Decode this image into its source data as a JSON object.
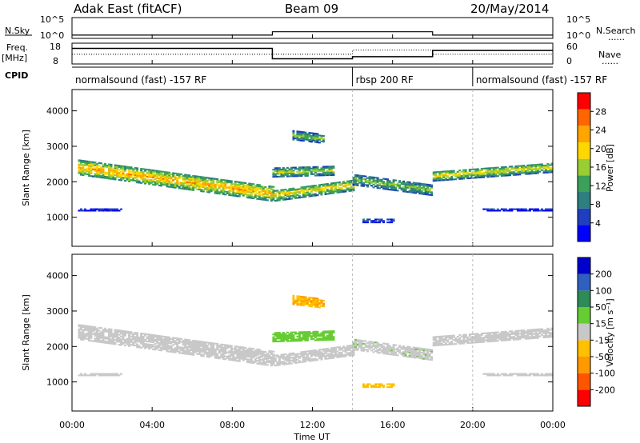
{
  "header": {
    "station": "Adak East (fitACF)",
    "beam": "Beam 09",
    "date": "20/May/2014"
  },
  "summary_labels": {
    "nsky": "N.Sky",
    "nsearch": "N.Search",
    "freq_top": "Freq.",
    "freq_unit": "[MHz]",
    "nave": "Nave",
    "cpid": "CPID",
    "dots": "......"
  },
  "summary_ticks": {
    "noise_top": "10^5",
    "noise_bottom": "10^0",
    "freq_high": "18",
    "freq_low": "8",
    "nave_high": "60",
    "nave_low": "0"
  },
  "cpid_modes": [
    {
      "label": "normalsound (fast) -157 RF",
      "start": 0,
      "end": 14
    },
    {
      "label": "rbsp 200 RF",
      "start": 14,
      "end": 20
    },
    {
      "label": "normalsound (fast) -157 RF",
      "start": 20,
      "end": 24
    }
  ],
  "xaxis": {
    "label": "Time UT",
    "ticks": [
      "00:00",
      "04:00",
      "08:00",
      "12:00",
      "16:00",
      "20:00",
      "00:00"
    ]
  },
  "power_panel": {
    "ylabel": "Slant Range [km]",
    "yticks": [
      "1000",
      "2000",
      "3000",
      "4000"
    ],
    "colorbar_label": "Power [dB]",
    "colorbar_ticks": [
      "4",
      "8",
      "12",
      "16",
      "20",
      "24",
      "28"
    ],
    "colors": [
      "#0000ff",
      "#1f3fbf",
      "#2e7f7f",
      "#3aa05a",
      "#9acd32",
      "#ffd700",
      "#ffa500",
      "#ff6600",
      "#ff0000"
    ]
  },
  "velocity_panel": {
    "ylabel": "Slant Range [km]",
    "yticks": [
      "1000",
      "2000",
      "3000",
      "4000"
    ],
    "colorbar_label": "Velocity [m s⁻¹]",
    "colorbar_ticks": [
      "-200",
      "-100",
      "-50",
      "-15",
      "15",
      "50",
      "100",
      "200"
    ],
    "colors": [
      "#ff0000",
      "#ff5500",
      "#ff9900",
      "#ffc000",
      "#c8c8c8",
      "#66cc33",
      "#2e8b57",
      "#2f5fbf",
      "#0000cc"
    ]
  },
  "chart_data": {
    "type": "heatmap",
    "x_unit": "hours UT",
    "x_range": [
      0,
      24
    ],
    "y_unit": "km",
    "y_range": [
      180,
      4600
    ],
    "power_range_db": [
      0,
      30
    ],
    "velocity_range": [
      -250,
      250
    ],
    "frequency_mhz": [
      {
        "start": 0,
        "end": 10,
        "value": 15.5
      },
      {
        "start": 10,
        "end": 14,
        "value": 10.5
      },
      {
        "start": 14,
        "end": 18,
        "value": 11.5
      },
      {
        "start": 18,
        "end": 24,
        "value": 14.5
      }
    ],
    "nave": [
      {
        "start": 0,
        "end": 14,
        "value": 28
      },
      {
        "start": 14,
        "end": 18,
        "value": 40
      },
      {
        "start": 18,
        "end": 24,
        "value": 28
      }
    ],
    "noise_sky": [
      {
        "start": 0,
        "end": 10,
        "value": 0.8
      },
      {
        "start": 10,
        "end": 18,
        "value": 1.6
      },
      {
        "start": 18,
        "end": 24,
        "value": 0.8
      }
    ],
    "echo_bands": [
      {
        "t_start": 0.3,
        "t_end": 10,
        "r_start": 2400,
        "r_end": 1650,
        "width": 420,
        "power": 22,
        "velocity": 0
      },
      {
        "t_start": 10,
        "t_end": 14,
        "r_start": 1600,
        "r_end": 1900,
        "width": 320,
        "power": 19,
        "velocity": 0
      },
      {
        "t_start": 10,
        "t_end": 13,
        "r_start": 2250,
        "r_end": 2300,
        "width": 250,
        "power": 16,
        "velocity": 60
      },
      {
        "t_start": 11,
        "t_end": 12.5,
        "r_start": 3300,
        "r_end": 3200,
        "width": 250,
        "power": 14,
        "velocity": -80
      },
      {
        "t_start": 14,
        "t_end": 18,
        "r_start": 2050,
        "r_end": 1750,
        "width": 300,
        "power": 14,
        "velocity": 15
      },
      {
        "t_start": 18,
        "t_end": 24,
        "r_start": 2150,
        "r_end": 2400,
        "width": 280,
        "power": 18,
        "velocity": 0
      },
      {
        "t_start": 0.3,
        "t_end": 2.5,
        "r_start": 1200,
        "r_end": 1200,
        "width": 60,
        "power": 5,
        "velocity": 0
      },
      {
        "t_start": 14.5,
        "t_end": 16,
        "r_start": 900,
        "r_end": 900,
        "width": 120,
        "power": 6,
        "velocity": -60
      },
      {
        "t_start": 20.5,
        "t_end": 24,
        "r_start": 1200,
        "r_end": 1200,
        "width": 60,
        "power": 5,
        "velocity": 0
      }
    ]
  }
}
